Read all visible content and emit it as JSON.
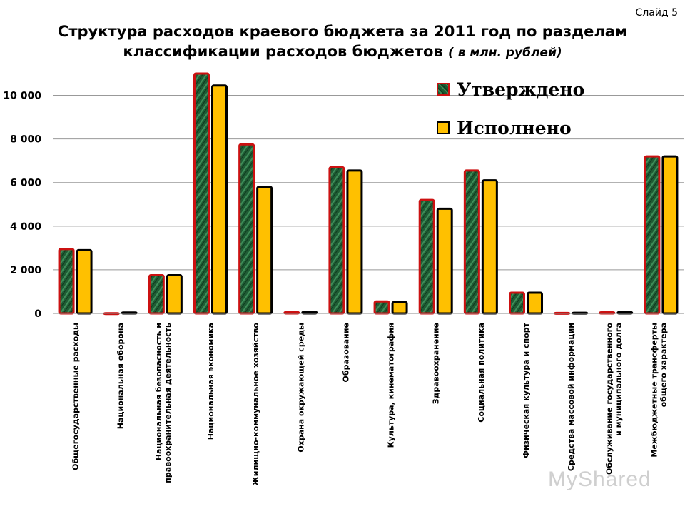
{
  "slide_label": "Слайд 5",
  "title_main": "Структура расходов краевого бюджета за 2011 год по разделам классификации расходов бюджетов",
  "title_sub": "( в млн. рублей)",
  "watermark": "MyShared",
  "colors": {
    "approved_fill": "#1f5c34",
    "approved_border": "#cc1111",
    "executed_fill": "#ffc000",
    "executed_border": "#000000",
    "grid": "#999999"
  },
  "chart_data": {
    "type": "bar",
    "title": "Структура расходов краевого бюджета за 2011 год по разделам классификации расходов бюджетов ( в млн. рублей)",
    "categories": [
      "Общегосударственные расходы",
      "Национальная оборона",
      "Национальная безопасность и правоохранительная деятельность",
      "Национальная экономика",
      "Жилищно-коммунальное хозяйство",
      "Охрана окружающей среды",
      "Образование",
      "Культура, кинематография",
      "Здравоохранение",
      "Социальная политика",
      "Физическая культура и спорт",
      "Средства массовой информации",
      "Обслуживание государственного и муниципального долга",
      "Межбюджетные трансферты общего характера"
    ],
    "series": [
      {
        "name": "Утверждено",
        "values": [
          2950,
          10,
          1750,
          11000,
          7750,
          60,
          6700,
          550,
          5200,
          6550,
          950,
          20,
          50,
          7200
        ]
      },
      {
        "name": "Исполнено",
        "values": [
          2900,
          40,
          1750,
          10450,
          5800,
          70,
          6550,
          520,
          4800,
          6100,
          950,
          30,
          60,
          7200
        ]
      }
    ],
    "yticks": [
      0,
      2000,
      4000,
      6000,
      8000,
      10000
    ],
    "ytick_labels": [
      "0",
      "2 000",
      "4 000",
      "6 000",
      "8 000",
      "10 000"
    ],
    "ylim": [
      0,
      11000
    ],
    "grid": true,
    "legend_position": "top-right"
  }
}
